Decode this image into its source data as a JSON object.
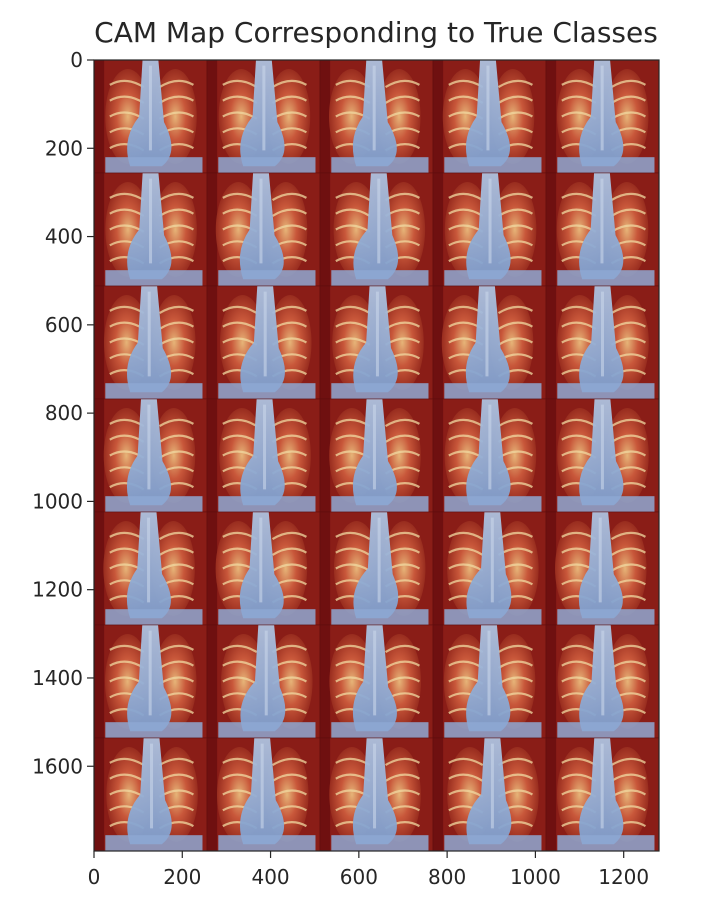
{
  "chart_data": {
    "type": "heatmap",
    "title": "CAM Map Corresponding to True Classes",
    "xlabel": "",
    "ylabel": "",
    "xlim": [
      0,
      1280
    ],
    "ylim": [
      1792,
      0
    ],
    "xticks": [
      0,
      200,
      400,
      600,
      800,
      1000,
      1200
    ],
    "yticks": [
      0,
      200,
      400,
      600,
      800,
      1000,
      1200,
      1400,
      1600
    ],
    "grid": false,
    "grid_layout": {
      "rows": 7,
      "cols": 5
    },
    "colormap": [
      "#7d1616",
      "#c0432f",
      "#e8c07a",
      "#d6dde6",
      "#7f9fce",
      "#5876b0"
    ],
    "content": "Grid of 35 chest X-ray images overlaid with class activation heatmaps"
  }
}
